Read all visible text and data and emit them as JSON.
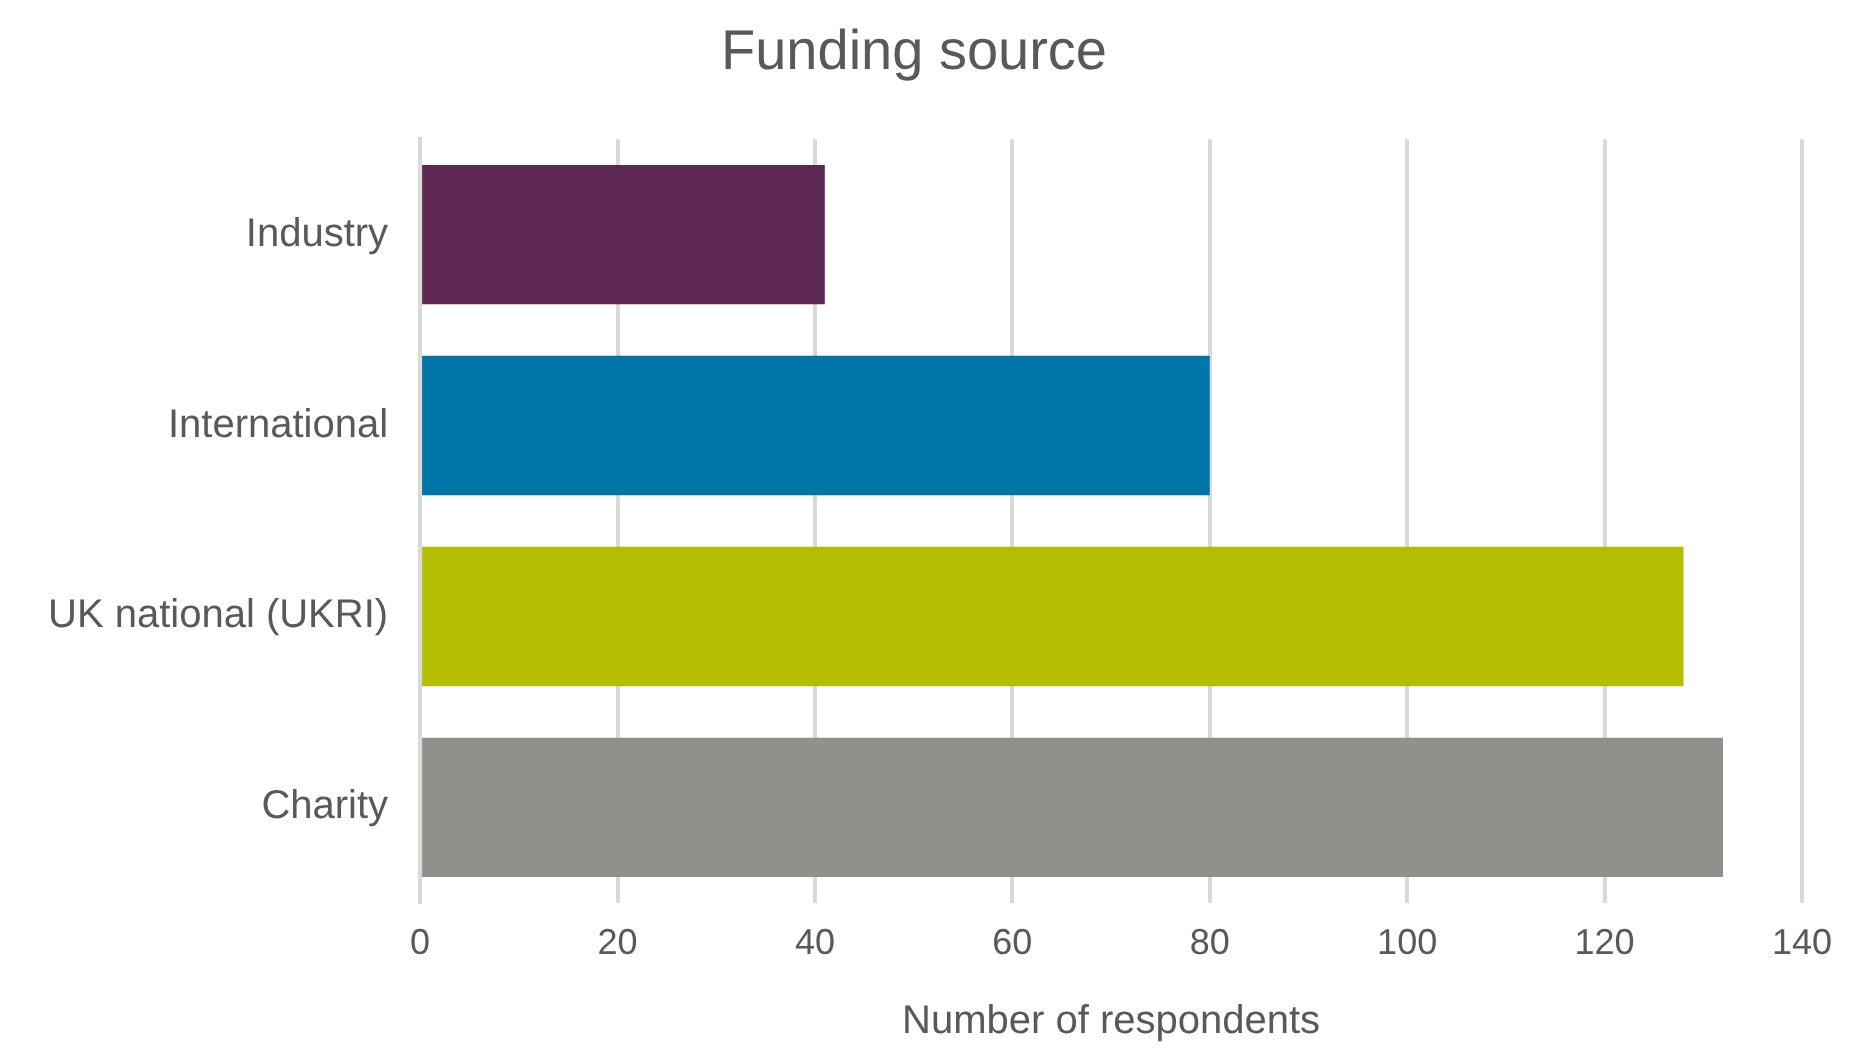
{
  "chart_data": {
    "type": "bar",
    "orientation": "horizontal",
    "title": "Funding source",
    "xlabel": "Number of respondents",
    "categories": [
      "Industry",
      "International",
      "UK national (UKRI)",
      "Charity"
    ],
    "values": [
      41,
      80,
      128,
      132
    ],
    "colors": [
      "#5c2751",
      "#0075a8",
      "#b5bd00",
      "#90918a"
    ],
    "xlim": [
      0,
      140
    ],
    "xticks": [
      0,
      20,
      40,
      60,
      80,
      100,
      120,
      140
    ],
    "grid": "x",
    "legend": false
  }
}
